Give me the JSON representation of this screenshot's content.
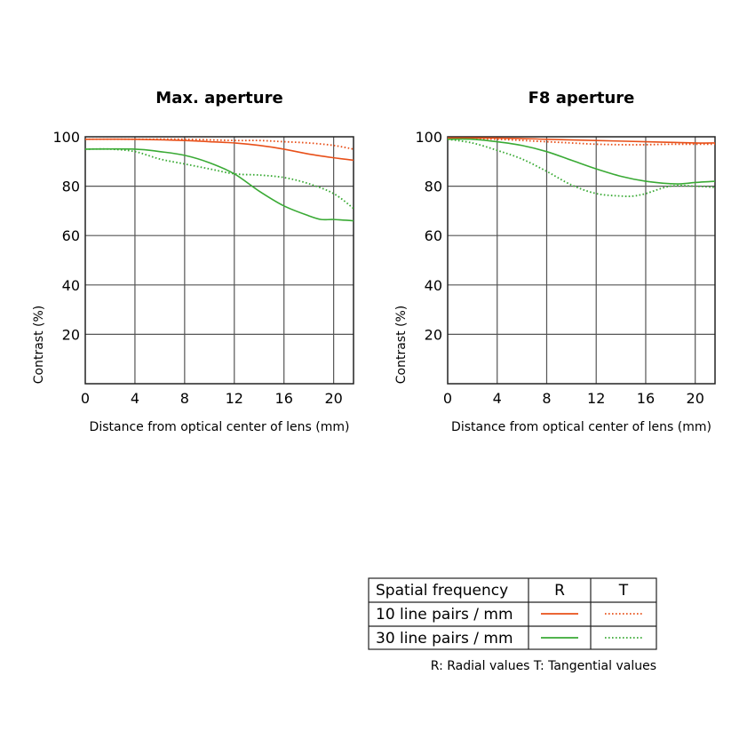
{
  "chart_data": [
    {
      "type": "line",
      "title": "Max. aperture",
      "xlabel": "Distance from optical center of lens (mm)",
      "ylabel": "Contrast (%)",
      "xlim": [
        0,
        21.6
      ],
      "ylim": [
        0,
        100
      ],
      "xticks": [
        0,
        4,
        8,
        12,
        16,
        20
      ],
      "yticks": [
        20,
        40,
        60,
        80,
        100
      ],
      "grid": true,
      "series": [
        {
          "name": "10 line pairs / mm R",
          "color": "#e8501a",
          "style": "solid",
          "x": [
            0,
            4,
            8,
            10,
            12,
            14,
            16,
            18,
            20,
            21.6
          ],
          "y": [
            99,
            99,
            98.5,
            98,
            97.5,
            96.5,
            95,
            93,
            91.5,
            90.5
          ]
        },
        {
          "name": "10 line pairs / mm T",
          "color": "#e8501a",
          "style": "dotted",
          "x": [
            0,
            4,
            8,
            12,
            14,
            16,
            18,
            20,
            21.6
          ],
          "y": [
            99,
            99,
            99,
            98.5,
            98.5,
            98,
            97.5,
            96.5,
            95
          ]
        },
        {
          "name": "30 line pairs / mm R",
          "color": "#3aaa35",
          "style": "solid",
          "x": [
            0,
            4,
            6,
            8,
            10,
            12,
            14,
            16,
            18,
            19,
            20,
            21.6
          ],
          "y": [
            95,
            95,
            94,
            92.5,
            89.5,
            85,
            78,
            72,
            68,
            66.5,
            66.5,
            66
          ]
        },
        {
          "name": "30 line pairs / mm T",
          "color": "#3aaa35",
          "style": "dotted",
          "x": [
            0,
            2,
            4,
            6,
            8,
            10,
            12,
            14,
            16,
            18,
            20,
            21.6
          ],
          "y": [
            95,
            95,
            94,
            91,
            89,
            87,
            85,
            84.5,
            83.5,
            81,
            77,
            71
          ]
        }
      ]
    },
    {
      "type": "line",
      "title": "F8 aperture",
      "xlabel": "Distance from optical center of lens (mm)",
      "ylabel": "Contrast (%)",
      "xlim": [
        0,
        21.6
      ],
      "ylim": [
        0,
        100
      ],
      "xticks": [
        0,
        4,
        8,
        12,
        16,
        20
      ],
      "yticks": [
        20,
        40,
        60,
        80,
        100
      ],
      "grid": true,
      "series": [
        {
          "name": "10 line pairs / mm R",
          "color": "#e8501a",
          "style": "solid",
          "x": [
            0,
            4,
            8,
            12,
            16,
            20,
            21.6
          ],
          "y": [
            99.5,
            99.5,
            99,
            98.5,
            98,
            97.5,
            97.5
          ]
        },
        {
          "name": "10 line pairs / mm T",
          "color": "#e8501a",
          "style": "dotted",
          "x": [
            0,
            4,
            8,
            10,
            12,
            14,
            16,
            18,
            20,
            21.6
          ],
          "y": [
            99.5,
            99,
            98,
            97.5,
            97,
            96.8,
            96.8,
            97,
            97,
            97
          ]
        },
        {
          "name": "30 line pairs / mm R",
          "color": "#3aaa35",
          "style": "solid",
          "x": [
            0,
            2,
            4,
            6,
            8,
            10,
            12,
            14,
            16,
            18,
            19,
            20,
            21.6
          ],
          "y": [
            99,
            99,
            98,
            96.5,
            94,
            90.5,
            87,
            84,
            82,
            81,
            81,
            81.5,
            82
          ]
        },
        {
          "name": "30 line pairs / mm T",
          "color": "#3aaa35",
          "style": "dotted",
          "x": [
            0,
            2,
            4,
            6,
            8,
            10,
            12,
            14,
            15,
            16,
            18,
            20,
            21.6
          ],
          "y": [
            99,
            97.5,
            94.5,
            91,
            86,
            80.5,
            77,
            76,
            76,
            77,
            80,
            80,
            79.5
          ]
        }
      ]
    }
  ],
  "legend": {
    "header": {
      "label": "Spatial frequency",
      "r": "R",
      "t": "T"
    },
    "rows": [
      {
        "label": "10 line pairs / mm",
        "color": "#e8501a"
      },
      {
        "label": "30 line pairs / mm",
        "color": "#3aaa35"
      }
    ],
    "note": "R: Radial values  T: Tangential values"
  }
}
